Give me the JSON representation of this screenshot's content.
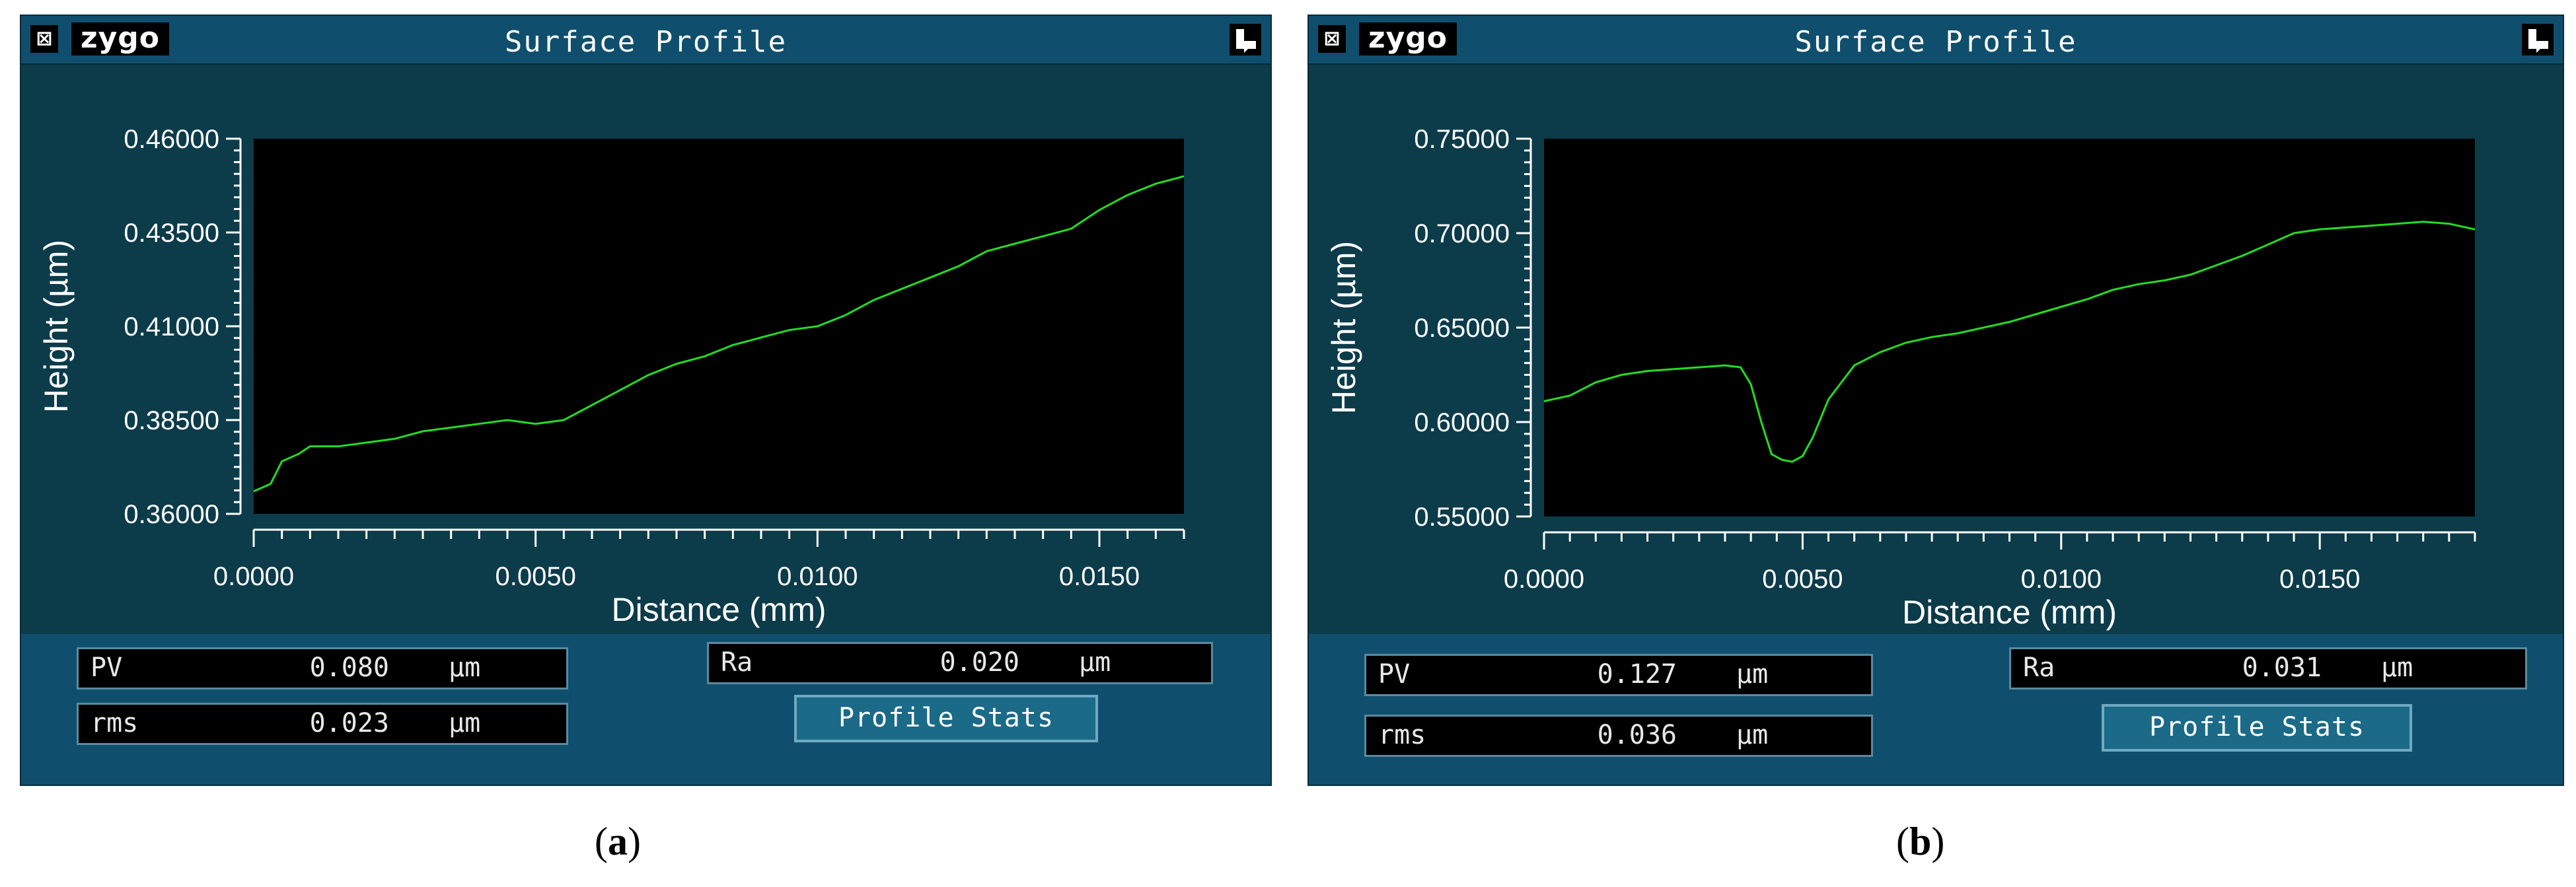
{
  "panels": [
    {
      "title": "Surface Profile",
      "logo": "zygo",
      "caption_letter": "a",
      "stats": {
        "pv": {
          "label": "PV",
          "value": "0.080",
          "unit": "µm"
        },
        "rms": {
          "label": "rms",
          "value": "0.023",
          "unit": "µm"
        },
        "ra": {
          "label": "Ra",
          "value": "0.020",
          "unit": "µm"
        },
        "button": "Profile Stats"
      }
    },
    {
      "title": "Surface Profile",
      "logo": "zygo",
      "caption_letter": "b",
      "stats": {
        "pv": {
          "label": "PV",
          "value": "0.127",
          "unit": "µm"
        },
        "rms": {
          "label": "rms",
          "value": "0.036",
          "unit": "µm"
        },
        "ra": {
          "label": "Ra",
          "value": "0.031",
          "unit": "µm"
        },
        "button": "Profile Stats"
      }
    }
  ],
  "chart_data": [
    {
      "type": "line",
      "xlabel": "Distance (mm)",
      "ylabel": "Height (µm)",
      "xlim": [
        0,
        0.0165
      ],
      "ylim": [
        0.36,
        0.46
      ],
      "xticks": [
        "0.0000",
        "0.0050",
        "0.0100",
        "0.0150"
      ],
      "xtick_values": [
        0,
        0.005,
        0.01,
        0.015
      ],
      "yticks": [
        "0.36000",
        "0.38500",
        "0.41000",
        "0.43500",
        "0.46000"
      ],
      "ytick_values": [
        0.36,
        0.385,
        0.41,
        0.435,
        0.46
      ],
      "line_color": "#22dd22",
      "plot_background": "#000000",
      "series": [
        {
          "x": [
            0,
            0.0003,
            0.0005,
            0.0008,
            0.001,
            0.0015,
            0.002,
            0.0025,
            0.003,
            0.0035,
            0.004,
            0.0045,
            0.005,
            0.0055,
            0.006,
            0.0065,
            0.007,
            0.0075,
            0.008,
            0.0085,
            0.009,
            0.0095,
            0.01,
            0.0105,
            0.011,
            0.0115,
            0.012,
            0.0125,
            0.013,
            0.0135,
            0.014,
            0.0145,
            0.015,
            0.0155,
            0.016,
            0.0165
          ],
          "y": [
            0.366,
            0.368,
            0.374,
            0.376,
            0.378,
            0.378,
            0.379,
            0.38,
            0.382,
            0.383,
            0.384,
            0.385,
            0.384,
            0.385,
            0.389,
            0.393,
            0.397,
            0.4,
            0.402,
            0.405,
            0.407,
            0.409,
            0.41,
            0.413,
            0.417,
            0.42,
            0.423,
            0.426,
            0.43,
            0.432,
            0.434,
            0.436,
            0.441,
            0.445,
            0.448,
            0.45
          ]
        }
      ]
    },
    {
      "type": "line",
      "xlabel": "Distance (mm)",
      "ylabel": "Height (µm)",
      "xlim": [
        0,
        0.018
      ],
      "ylim": [
        0.55,
        0.75
      ],
      "xticks": [
        "0.0000",
        "0.0050",
        "0.0100",
        "0.0150"
      ],
      "xtick_values": [
        0,
        0.005,
        0.01,
        0.015
      ],
      "yticks": [
        "0.55000",
        "0.60000",
        "0.65000",
        "0.70000",
        "0.75000"
      ],
      "ytick_values": [
        0.55,
        0.6,
        0.65,
        0.7,
        0.75
      ],
      "line_color": "#22dd22",
      "plot_background": "#000000",
      "series": [
        {
          "x": [
            0,
            0.0005,
            0.001,
            0.0015,
            0.002,
            0.0025,
            0.003,
            0.0035,
            0.0038,
            0.004,
            0.0042,
            0.0044,
            0.0046,
            0.0048,
            0.005,
            0.0052,
            0.0055,
            0.006,
            0.0065,
            0.007,
            0.0075,
            0.008,
            0.0085,
            0.009,
            0.0095,
            0.01,
            0.0105,
            0.011,
            0.0115,
            0.012,
            0.0125,
            0.013,
            0.0135,
            0.014,
            0.0145,
            0.015,
            0.0155,
            0.016,
            0.0165,
            0.017,
            0.0175,
            0.018
          ],
          "y": [
            0.611,
            0.614,
            0.621,
            0.625,
            0.627,
            0.628,
            0.629,
            0.63,
            0.629,
            0.62,
            0.6,
            0.583,
            0.58,
            0.579,
            0.582,
            0.592,
            0.612,
            0.63,
            0.637,
            0.642,
            0.645,
            0.647,
            0.65,
            0.653,
            0.657,
            0.661,
            0.665,
            0.67,
            0.673,
            0.675,
            0.678,
            0.683,
            0.688,
            0.694,
            0.7,
            0.702,
            0.703,
            0.704,
            0.705,
            0.706,
            0.705,
            0.702
          ]
        }
      ]
    }
  ]
}
